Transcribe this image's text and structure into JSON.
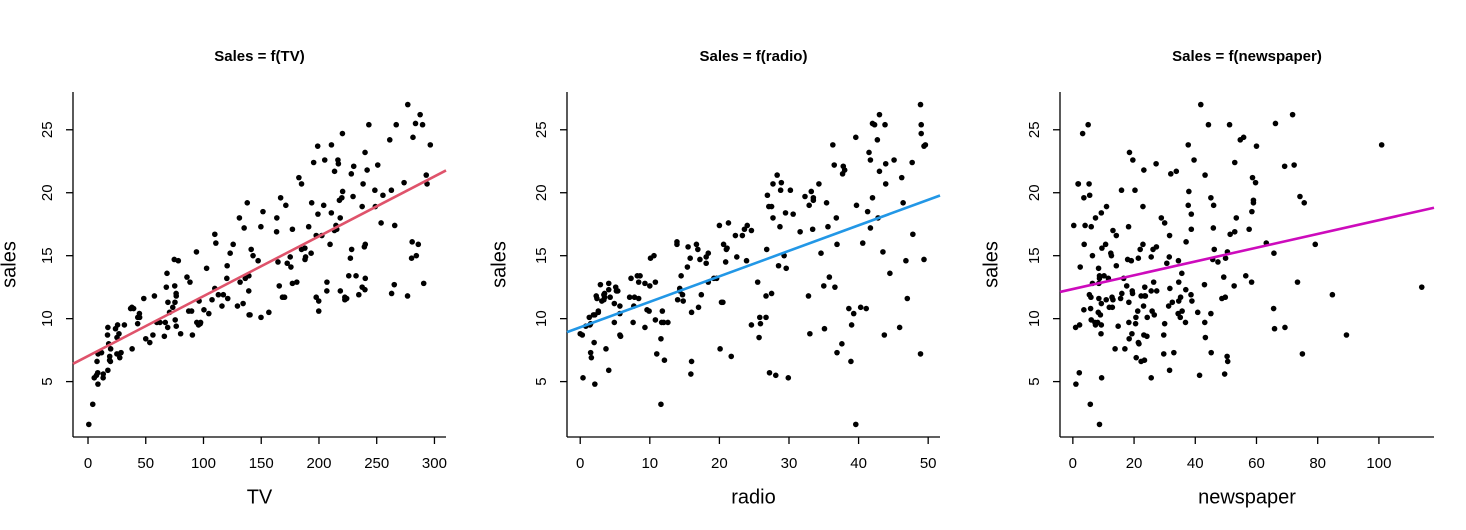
{
  "chart_data": [
    {
      "type": "scatter",
      "title": "Sales = f(TV)",
      "x_label": "TV",
      "y_label": "sales",
      "xlim": [
        -13,
        310
      ],
      "ylim": [
        0.6,
        28.0
      ],
      "xticks": [
        0,
        50,
        100,
        150,
        200,
        250,
        300
      ],
      "yticks": [
        5,
        10,
        15,
        20,
        25
      ],
      "point_color": "#000000",
      "fit": {
        "intercept": 7.0326,
        "slope": 0.04754,
        "color": "#df536b"
      },
      "x": [
        230.1,
        44.5,
        17.2,
        151.5,
        180.8,
        8.7,
        57.5,
        120.2,
        8.6,
        199.8,
        66.1,
        214.7,
        23.8,
        97.5,
        204.1,
        195.4,
        67.8,
        281.4,
        69.2,
        147.3,
        218.4,
        237.4,
        13.2,
        228.3,
        62.3,
        262.9,
        142.9,
        240.1,
        248.8,
        70.6,
        292.9,
        112.9,
        97.2,
        265.6,
        95.7,
        290.7,
        266.9,
        74.7,
        43.1,
        228,
        202.5,
        177,
        293.6,
        206.9,
        25.1,
        175.1,
        89.7,
        239.9,
        227.2,
        66.9,
        199.8,
        100.4,
        216.4,
        182.6,
        262.7,
        198.9,
        7.3,
        136.2,
        210.8,
        210.7,
        53.5,
        261.3,
        239.3,
        102.7,
        131.1,
        69,
        31.5,
        139.3,
        237.4,
        216.8,
        199.1,
        109.8,
        26.8,
        129.4,
        213.4,
        16.9,
        27.5,
        120.5,
        5.4,
        116,
        76.4,
        239.8,
        75.3,
        68.4,
        213.5,
        193.2,
        76.3,
        110.7,
        88.3,
        109.8,
        134.3,
        28.6,
        217.7,
        250.9,
        107.4,
        163.3,
        197.6,
        184.9,
        289.7,
        135.2,
        222.4,
        296.4,
        280.2,
        187.9,
        238.2,
        137.9,
        25,
        90.4,
        13.1,
        255.4,
        225.8,
        241.7,
        175.7,
        209.6,
        78.2,
        75.1,
        139.2,
        76.4,
        125.7,
        19.4,
        141.3,
        18.8,
        224,
        123.1,
        229.5,
        87.2,
        7.8,
        80.2,
        220.3,
        59.6,
        0.7,
        265.2,
        8.4,
        219.8,
        36.9,
        48.3,
        25.6,
        273.7,
        43,
        184.9,
        73.4,
        193.7,
        220.5,
        104.6,
        96.2,
        140.3,
        240.1,
        243.2,
        38,
        44.7,
        280.7,
        121,
        197.6,
        171.3,
        187.8,
        4.1,
        93.9,
        149.8,
        11.7,
        131.7,
        172.5,
        85.7,
        188.4,
        163.5,
        117.2,
        234.5,
        17.9,
        206.8,
        215.4,
        284.3,
        50,
        164.5,
        19.6,
        168.4,
        222.4,
        276.9,
        248.4,
        170.2,
        276.7,
        165.6,
        156.6,
        218.5,
        56.2,
        287.6,
        253.8,
        205,
        139.5,
        191.1,
        286,
        18.7,
        39.5,
        75.5,
        17.2,
        166.8,
        149.7,
        38.2,
        94.2,
        177,
        283.6,
        232.1
      ],
      "y": [
        22.1,
        10.4,
        9.3,
        18.5,
        12.9,
        7.2,
        11.8,
        13.2,
        4.8,
        10.6,
        8.6,
        17.4,
        9.2,
        9.7,
        19,
        22.4,
        12.5,
        24.4,
        11.3,
        14.6,
        18,
        12.5,
        5.6,
        15.5,
        9.7,
        12,
        15,
        15.9,
        18.9,
        10.5,
        21.4,
        11.9,
        9.6,
        17.4,
        9.5,
        12.8,
        25.4,
        14.7,
        10.1,
        21.5,
        16.6,
        17.1,
        20.7,
        12.9,
        8.5,
        14.9,
        10.6,
        23.2,
        14.8,
        9.7,
        11.4,
        10.7,
        22.6,
        21.2,
        20.2,
        23.7,
        5.5,
        13.2,
        23.8,
        18.4,
        8.1,
        24.2,
        15.7,
        14,
        18,
        9.3,
        9.5,
        13.4,
        18.9,
        22.3,
        18.3,
        12.4,
        8.8,
        11,
        17,
        8.7,
        6.9,
        14.2,
        5.3,
        11,
        11.8,
        12.3,
        11.3,
        13.6,
        21.7,
        15.2,
        12,
        16,
        12.9,
        16.7,
        11.2,
        7.3,
        19.4,
        22.2,
        11.5,
        16.9,
        11.7,
        15.5,
        25.4,
        17.2,
        11.7,
        23.8,
        14.8,
        14.7,
        20.7,
        19.2,
        7.2,
        8.7,
        5.3,
        19.8,
        13.4,
        21.8,
        14.1,
        15.9,
        14.6,
        12.6,
        12.2,
        9.4,
        15.9,
        6.6,
        15.5,
        7,
        11.6,
        15.2,
        19.7,
        10.6,
        6.6,
        8.8,
        24.7,
        9.7,
        1.6,
        12.7,
        5.7,
        19.6,
        10.8,
        11.6,
        9.5,
        20.8,
        9.6,
        20.7,
        10.9,
        19.2,
        20.1,
        10.4,
        11.4,
        10.3,
        13.2,
        25.4,
        10.9,
        10.1,
        16.1,
        11.6,
        16.6,
        19,
        15.6,
        3.2,
        15.3,
        10.1,
        7.3,
        12.9,
        14.4,
        13.3,
        14.9,
        18,
        11.9,
        11.9,
        8,
        12.2,
        17.1,
        15,
        8.4,
        14.5,
        7.6,
        11.7,
        11.5,
        27,
        20.2,
        11.7,
        11.8,
        12.6,
        10.5,
        12.2,
        8.7,
        26.2,
        17.6,
        22.6,
        10.3,
        17.3,
        15.9,
        6.7,
        10.8,
        9.9,
        5.9,
        19.6,
        17.3,
        7.6,
        9.7,
        12.8,
        25.5,
        13.4
      ]
    },
    {
      "type": "scatter",
      "title": "Sales = f(radio)",
      "x_label": "radio",
      "y_label": "sales",
      "xlim": [
        -1.9,
        51.7
      ],
      "ylim": [
        0.6,
        28.0
      ],
      "xticks": [
        0,
        10,
        20,
        30,
        40,
        50
      ],
      "yticks": [
        5,
        10,
        15,
        20,
        25
      ],
      "point_color": "#000000",
      "fit": {
        "intercept": 9.312,
        "slope": 0.2025,
        "color": "#2297e6"
      },
      "x": [
        37.8,
        39.3,
        45.9,
        41.3,
        10.8,
        48.9,
        32.8,
        19.6,
        2.1,
        2.6,
        5.8,
        24,
        35.1,
        7.6,
        32.9,
        47.7,
        36.6,
        39.6,
        20.5,
        23.9,
        27.7,
        5.1,
        15.9,
        16.9,
        12.6,
        3.5,
        29.3,
        16.7,
        27.1,
        16,
        28.3,
        17.4,
        1.5,
        20,
        1.4,
        4.1,
        43.8,
        49.4,
        26.7,
        37.7,
        22.3,
        33.4,
        27.7,
        8.4,
        25.7,
        22.5,
        9.9,
        41.5,
        15.8,
        11.7,
        3.1,
        9.6,
        41.7,
        46.2,
        28.8,
        49.4,
        28.1,
        19.2,
        49.6,
        29.5,
        2,
        42.7,
        15.5,
        29.6,
        42.8,
        9.3,
        24.6,
        14.5,
        27.5,
        43.9,
        30.6,
        14.3,
        33,
        5.7,
        24.6,
        43.7,
        1.6,
        28.5,
        29.9,
        7.7,
        26.7,
        4.1,
        20.3,
        44.5,
        43,
        18.4,
        27.5,
        40.6,
        25.5,
        47.8,
        4.9,
        1.5,
        33.5,
        36.5,
        14,
        31.6,
        3.5,
        21,
        42.3,
        41.7,
        4.3,
        36.3,
        10.1,
        17.2,
        34.3,
        46.4,
        11,
        0.3,
        0.4,
        26.9,
        8.2,
        38,
        15.4,
        20.6,
        46.8,
        35,
        14.3,
        0.8,
        36.9,
        16,
        26.8,
        21.7,
        2.4,
        34.6,
        32.3,
        11.8,
        38.9,
        0,
        49,
        12,
        39.6,
        2.9,
        27.2,
        33.5,
        38.6,
        47,
        39,
        28.9,
        25.9,
        43.9,
        17,
        35.4,
        33.2,
        5.7,
        14.8,
        1.9,
        7.3,
        49,
        40.3,
        25.8,
        13.9,
        8.4,
        23.3,
        39.7,
        21.1,
        11.6,
        43.5,
        1.3,
        36.9,
        18.4,
        18.1,
        35.8,
        18.1,
        36.8,
        14.7,
        3.4,
        37.6,
        5.2,
        23.6,
        10.6,
        11.6,
        20.9,
        20.1,
        7.1,
        3.4,
        48.9,
        30.2,
        7.8,
        2.3,
        10,
        2.6,
        5.4,
        5.7,
        43,
        21.3,
        45.1,
        2.1,
        28.7,
        13.9,
        12.1,
        41.1,
        10.8,
        4.1,
        42,
        35.6,
        3.7,
        4.9,
        9.3,
        42,
        8.6
      ],
      "y": [
        22.1,
        10.4,
        9.3,
        18.5,
        12.9,
        7.2,
        11.8,
        13.2,
        4.8,
        10.6,
        8.6,
        17.4,
        9.2,
        9.7,
        19,
        22.4,
        12.5,
        24.4,
        11.3,
        14.6,
        18,
        12.5,
        5.6,
        15.5,
        9.7,
        12,
        15,
        15.9,
        18.9,
        10.5,
        21.4,
        11.9,
        9.6,
        17.4,
        9.5,
        12.8,
        25.4,
        14.7,
        10.1,
        21.5,
        16.6,
        17.1,
        20.7,
        12.9,
        8.5,
        14.9,
        10.6,
        23.2,
        14.8,
        9.7,
        11.4,
        10.7,
        22.6,
        21.2,
        20.2,
        23.7,
        5.5,
        13.2,
        23.8,
        18.4,
        8.1,
        24.2,
        15.7,
        14,
        18,
        9.3,
        9.5,
        13.4,
        18.9,
        22.3,
        18.3,
        12.4,
        8.8,
        11,
        17,
        8.7,
        6.9,
        14.2,
        5.3,
        11,
        11.8,
        12.3,
        11.3,
        13.6,
        21.7,
        15.2,
        12,
        16,
        12.9,
        16.7,
        11.2,
        7.3,
        19.4,
        22.2,
        11.5,
        16.9,
        11.7,
        15.5,
        25.4,
        17.2,
        11.7,
        23.8,
        14.8,
        14.7,
        20.7,
        19.2,
        7.2,
        8.7,
        5.3,
        19.8,
        13.4,
        21.8,
        14.1,
        15.9,
        14.6,
        12.6,
        12.2,
        9.4,
        15.9,
        6.6,
        15.5,
        7,
        11.6,
        15.2,
        19.7,
        10.6,
        6.6,
        8.8,
        24.7,
        9.7,
        1.6,
        12.7,
        5.7,
        19.6,
        10.8,
        11.6,
        9.5,
        20.8,
        9.6,
        20.7,
        10.9,
        19.2,
        20.1,
        10.4,
        11.4,
        10.3,
        13.2,
        25.4,
        10.9,
        10.1,
        16.1,
        11.6,
        16.6,
        19,
        15.6,
        3.2,
        15.3,
        10.1,
        7.3,
        12.9,
        14.4,
        13.3,
        14.9,
        18,
        11.9,
        11.9,
        8,
        12.2,
        17.1,
        15,
        8.4,
        14.5,
        7.6,
        11.7,
        11.5,
        27,
        20.2,
        11.7,
        11.8,
        12.6,
        10.5,
        12.2,
        8.7,
        26.2,
        17.6,
        22.6,
        10.3,
        17.3,
        15.9,
        6.7,
        10.8,
        9.9,
        5.9,
        19.6,
        17.3,
        7.6,
        9.7,
        12.8,
        25.5,
        13.4
      ]
    },
    {
      "type": "scatter",
      "title": "Sales = f(newspaper)",
      "x_label": "newspaper",
      "y_label": "sales",
      "xlim": [
        -4.2,
        118
      ],
      "ylim": [
        0.6,
        28.0
      ],
      "xticks": [
        0,
        20,
        40,
        60,
        80,
        100
      ],
      "yticks": [
        5,
        10,
        15,
        20,
        25
      ],
      "point_color": "#000000",
      "fit": {
        "intercept": 12.351,
        "slope": 0.0547,
        "color": "#cd0bbc"
      },
      "x": [
        69.2,
        45.1,
        69.3,
        58.5,
        58.4,
        75,
        23.5,
        11.6,
        1,
        21.2,
        24.2,
        4,
        65.9,
        7.2,
        46,
        52.9,
        114,
        55.8,
        18.3,
        19.1,
        53.4,
        23.5,
        49.6,
        26.2,
        18.3,
        19.5,
        12.6,
        22.9,
        22.9,
        40.8,
        43.2,
        38.6,
        30,
        0.3,
        7.4,
        8.5,
        5,
        45.7,
        35.1,
        32,
        31.6,
        38.7,
        1.8,
        26.4,
        43.3,
        31.5,
        35.7,
        18.5,
        49.9,
        36.8,
        34.6,
        3.6,
        39.6,
        58.7,
        15.9,
        60,
        41.4,
        16.6,
        37.7,
        9.3,
        21.4,
        54.7,
        27.3,
        8.4,
        28.9,
        0.9,
        2.2,
        10.2,
        11,
        27.2,
        38.7,
        31.7,
        19.3,
        31.3,
        13.1,
        89.4,
        20.7,
        14.2,
        9.4,
        23.1,
        22.3,
        36.9,
        32.5,
        35.6,
        33.8,
        65.7,
        16,
        63.2,
        73.4,
        51.4,
        9.3,
        33,
        59,
        72.3,
        10.9,
        52.9,
        5.9,
        22,
        51.2,
        45.9,
        49.8,
        100.9,
        21.4,
        17.9,
        5.3,
        59,
        29.7,
        23.2,
        25.6,
        5.5,
        56.5,
        23.2,
        2.4,
        10.7,
        34.5,
        52.7,
        25.6,
        14.8,
        79.2,
        22.3,
        46.2,
        50.4,
        15.6,
        12.4,
        74.2,
        25.9,
        50.6,
        9.2,
        3.2,
        43.1,
        8.7,
        43,
        2.1,
        45.1,
        65.6,
        8.5,
        9.3,
        59.7,
        20.5,
        1.7,
        12.9,
        75.6,
        37.9,
        34.4,
        38.9,
        9,
        8.7,
        44.3,
        11.9,
        20.6,
        37,
        48.7,
        14.2,
        37.7,
        9.5,
        5.7,
        50.5,
        24.3,
        45.2,
        34.6,
        30.7,
        49.3,
        25.6,
        7.4,
        5.4,
        84.8,
        21.6,
        19.4,
        57.6,
        6.4,
        18.4,
        47.4,
        17,
        12.8,
        13.1,
        41.8,
        20.3,
        35.2,
        23.7,
        17.6,
        8.3,
        27.4,
        29.7,
        71.8,
        30,
        19.6,
        26.6,
        18.2,
        3.7,
        23.4,
        5.8,
        6,
        31.6,
        3.6,
        6,
        13.8,
        8.1,
        6.4,
        66.2,
        8.7
      ],
      "y": [
        22.1,
        10.4,
        9.3,
        18.5,
        12.9,
        7.2,
        11.8,
        13.2,
        4.8,
        10.6,
        8.6,
        17.4,
        9.2,
        9.7,
        19,
        22.4,
        12.5,
        24.4,
        11.3,
        14.6,
        18,
        12.5,
        5.6,
        15.5,
        9.7,
        12,
        15,
        15.9,
        18.9,
        10.5,
        21.4,
        11.9,
        9.6,
        17.4,
        9.5,
        12.8,
        25.4,
        14.7,
        10.1,
        21.5,
        16.6,
        17.1,
        20.7,
        12.9,
        8.5,
        14.9,
        10.6,
        23.2,
        14.8,
        9.7,
        11.4,
        10.7,
        22.6,
        21.2,
        20.2,
        23.7,
        5.5,
        13.2,
        23.8,
        18.4,
        8.1,
        24.2,
        15.7,
        14,
        18,
        9.3,
        9.5,
        13.4,
        18.9,
        22.3,
        18.3,
        12.4,
        8.8,
        11,
        17,
        8.7,
        6.9,
        14.2,
        5.3,
        11,
        11.8,
        12.3,
        11.3,
        13.6,
        21.7,
        15.2,
        12,
        16,
        12.9,
        16.7,
        11.2,
        7.3,
        19.4,
        22.2,
        11.5,
        16.9,
        11.7,
        15.5,
        25.4,
        17.2,
        11.7,
        23.8,
        14.8,
        14.7,
        20.7,
        19.2,
        7.2,
        8.7,
        5.3,
        19.8,
        13.4,
        21.8,
        14.1,
        15.9,
        14.6,
        12.6,
        12.2,
        9.4,
        15.9,
        6.6,
        15.5,
        7,
        11.6,
        15.2,
        19.7,
        10.6,
        6.6,
        8.8,
        24.7,
        9.7,
        1.6,
        12.7,
        5.7,
        19.6,
        10.8,
        11.6,
        9.5,
        20.8,
        9.6,
        20.7,
        10.9,
        19.2,
        20.1,
        10.4,
        11.4,
        10.3,
        13.2,
        25.4,
        10.9,
        10.1,
        16.1,
        11.6,
        16.6,
        19,
        15.6,
        3.2,
        15.3,
        10.1,
        7.3,
        12.9,
        14.4,
        13.3,
        14.9,
        18,
        11.9,
        11.9,
        8,
        12.2,
        17.1,
        15,
        8.4,
        14.5,
        7.6,
        11.7,
        11.5,
        27,
        20.2,
        11.7,
        11.8,
        12.6,
        10.5,
        12.2,
        8.7,
        26.2,
        17.6,
        22.6,
        10.3,
        17.3,
        15.9,
        6.7,
        10.8,
        9.9,
        5.9,
        19.6,
        17.3,
        7.6,
        9.7,
        12.8,
        25.5,
        13.4
      ]
    }
  ]
}
